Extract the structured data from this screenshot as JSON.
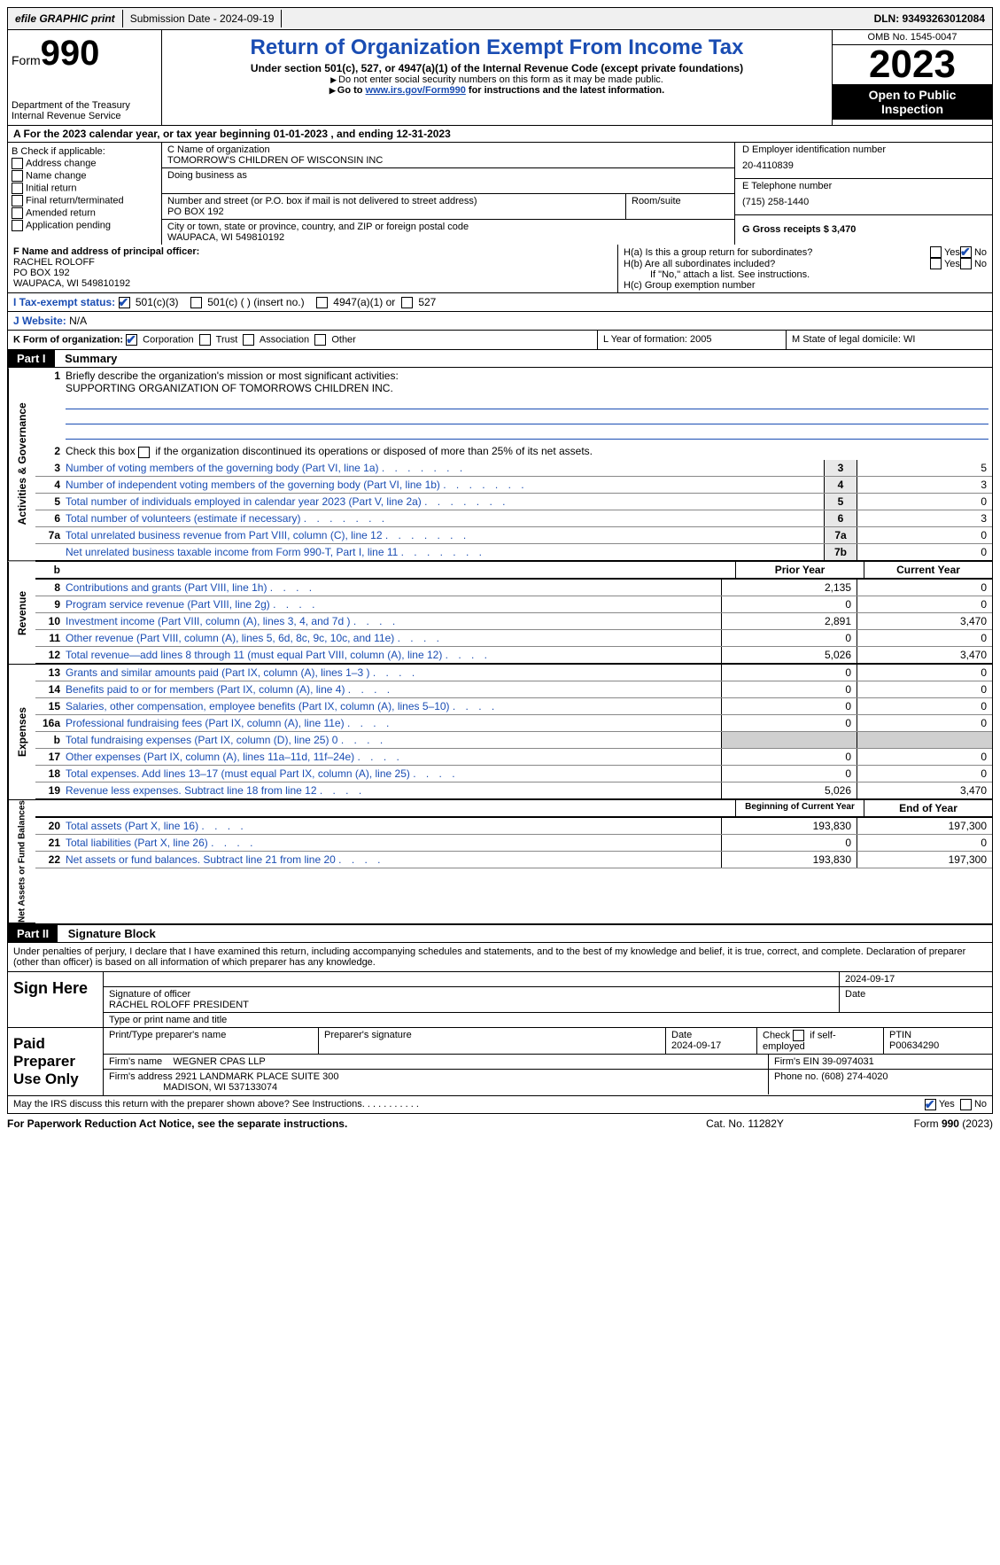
{
  "topbar": {
    "efile": "efile GRAPHIC print",
    "submission_label": "Submission Date - 2024-09-19",
    "dln": "DLN: 93493263012084"
  },
  "header": {
    "form_word": "Form",
    "form_num": "990",
    "dept": "Department of the Treasury",
    "irs": "Internal Revenue Service",
    "title": "Return of Organization Exempt From Income Tax",
    "subtitle": "Under section 501(c), 527, or 4947(a)(1) of the Internal Revenue Code (except private foundations)",
    "note1": "Do not enter social security numbers on this form as it may be made public.",
    "note2": "Go to ",
    "link": "www.irs.gov/Form990",
    "note2b": " for instructions and the latest information.",
    "omb": "OMB No. 1545-0047",
    "year": "2023",
    "open": "Open to Public Inspection"
  },
  "lineA": "A   For the 2023 calendar year, or tax year beginning 01-01-2023    , and ending 12-31-2023",
  "boxB": {
    "head": "B Check if applicable:",
    "opts": [
      "Address change",
      "Name change",
      "Initial return",
      "Final return/terminated",
      "Amended return",
      "Application pending"
    ]
  },
  "boxC": {
    "name_lbl": "C Name of organization",
    "name": "TOMORROW'S CHILDREN OF WISCONSIN INC",
    "dba_lbl": "Doing business as",
    "addr_lbl": "Number and street (or P.O. box if mail is not delivered to street address)",
    "addr": "PO BOX 192",
    "room_lbl": "Room/suite",
    "city_lbl": "City or town, state or province, country, and ZIP or foreign postal code",
    "city": "WAUPACA, WI  549810192"
  },
  "boxD": {
    "lbl": "D Employer identification number",
    "val": "20-4110839"
  },
  "boxE": {
    "lbl": "E Telephone number",
    "val": "(715) 258-1440"
  },
  "boxG": {
    "lbl": "G Gross receipts $ 3,470"
  },
  "boxF": {
    "lbl": "F  Name and address of principal officer:",
    "l1": "RACHEL ROLOFF",
    "l2": "PO BOX 192",
    "l3": "WAUPACA, WI  549810192"
  },
  "boxH": {
    "ha": "H(a)  Is this a group return for subordinates?",
    "hb": "H(b)  Are all subordinates included?",
    "hb2": "If \"No,\" attach a list. See instructions.",
    "hc": "H(c)  Group exemption number",
    "yes": "Yes",
    "no": "No"
  },
  "rowI": {
    "lead": "I   Tax-exempt status:",
    "o1": "501(c)(3)",
    "o2": "501(c) (  ) (insert no.)",
    "o3": "4947(a)(1) or",
    "o4": "527"
  },
  "rowJ": {
    "lead": "J   Website:",
    "val": "  N/A"
  },
  "rowK": {
    "lead": "K Form of organization:",
    "o1": "Corporation",
    "o2": "Trust",
    "o3": "Association",
    "o4": "Other"
  },
  "rowL": "L Year of formation: 2005",
  "rowM": "M State of legal domicile: WI",
  "partI": {
    "num": "Part I",
    "title": "Summary"
  },
  "summary": {
    "l1a": "Briefly describe the organization's mission or most significant activities:",
    "l1b": "SUPPORTING ORGANIZATION OF TOMORROWS CHILDREN INC.",
    "l2": "Check this box        if the organization discontinued its operations or disposed of more than 25% of its net assets.",
    "rows_gov": [
      {
        "n": "3",
        "t": "Number of voting members of the governing body (Part VI, line 1a)",
        "box": "3",
        "v": "5"
      },
      {
        "n": "4",
        "t": "Number of independent voting members of the governing body (Part VI, line 1b)",
        "box": "4",
        "v": "3"
      },
      {
        "n": "5",
        "t": "Total number of individuals employed in calendar year 2023 (Part V, line 2a)",
        "box": "5",
        "v": "0"
      },
      {
        "n": "6",
        "t": "Total number of volunteers (estimate if necessary)",
        "box": "6",
        "v": "3"
      },
      {
        "n": "7a",
        "t": "Total unrelated business revenue from Part VIII, column (C), line 12",
        "box": "7a",
        "v": "0"
      },
      {
        "n": "",
        "t": "Net unrelated business taxable income from Form 990-T, Part I, line 11",
        "box": "7b",
        "v": "0"
      }
    ],
    "col_prior": "Prior Year",
    "col_curr": "Current Year",
    "rows_rev": [
      {
        "n": "8",
        "t": "Contributions and grants (Part VIII, line 1h)",
        "p": "2,135",
        "c": "0"
      },
      {
        "n": "9",
        "t": "Program service revenue (Part VIII, line 2g)",
        "p": "0",
        "c": "0"
      },
      {
        "n": "10",
        "t": "Investment income (Part VIII, column (A), lines 3, 4, and 7d )",
        "p": "2,891",
        "c": "3,470"
      },
      {
        "n": "11",
        "t": "Other revenue (Part VIII, column (A), lines 5, 6d, 8c, 9c, 10c, and 11e)",
        "p": "0",
        "c": "0"
      },
      {
        "n": "12",
        "t": "Total revenue—add lines 8 through 11 (must equal Part VIII, column (A), line 12)",
        "p": "5,026",
        "c": "3,470"
      }
    ],
    "rows_exp": [
      {
        "n": "13",
        "t": "Grants and similar amounts paid (Part IX, column (A), lines 1–3 )",
        "p": "0",
        "c": "0"
      },
      {
        "n": "14",
        "t": "Benefits paid to or for members (Part IX, column (A), line 4)",
        "p": "0",
        "c": "0"
      },
      {
        "n": "15",
        "t": "Salaries, other compensation, employee benefits (Part IX, column (A), lines 5–10)",
        "p": "0",
        "c": "0"
      },
      {
        "n": "16a",
        "t": "Professional fundraising fees (Part IX, column (A), line 11e)",
        "p": "0",
        "c": "0"
      },
      {
        "n": "b",
        "t": "Total fundraising expenses (Part IX, column (D), line 25) 0",
        "p": "shade",
        "c": "shade"
      },
      {
        "n": "17",
        "t": "Other expenses (Part IX, column (A), lines 11a–11d, 11f–24e)",
        "p": "0",
        "c": "0"
      },
      {
        "n": "18",
        "t": "Total expenses. Add lines 13–17 (must equal Part IX, column (A), line 25)",
        "p": "0",
        "c": "0"
      },
      {
        "n": "19",
        "t": "Revenue less expenses. Subtract line 18 from line 12",
        "p": "5,026",
        "c": "3,470"
      }
    ],
    "col_boy": "Beginning of Current Year",
    "col_eoy": "End of Year",
    "rows_net": [
      {
        "n": "20",
        "t": "Total assets (Part X, line 16)",
        "p": "193,830",
        "c": "197,300"
      },
      {
        "n": "21",
        "t": "Total liabilities (Part X, line 26)",
        "p": "0",
        "c": "0"
      },
      {
        "n": "22",
        "t": "Net assets or fund balances. Subtract line 21 from line 20",
        "p": "193,830",
        "c": "197,300"
      }
    ],
    "side_gov": "Activities & Governance",
    "side_rev": "Revenue",
    "side_exp": "Expenses",
    "side_net": "Net Assets or Fund Balances"
  },
  "partII": {
    "num": "Part II",
    "title": "Signature Block"
  },
  "sig": {
    "decl": "Under penalties of perjury, I declare that I have examined this return, including accompanying schedules and statements, and to the best of my knowledge and belief, it is true, correct, and complete. Declaration of preparer (other than officer) is based on all information of which preparer has any knowledge.",
    "sign_here": "Sign Here",
    "sig_officer": "Signature of officer",
    "officer": "RACHEL ROLOFF PRESIDENT",
    "type_name": "Type or print name and title",
    "date_lbl": "Date",
    "date1": "2024-09-17",
    "paid": "Paid Preparer Use Only",
    "prep_name_lbl": "Print/Type preparer's name",
    "prep_sig_lbl": "Preparer's signature",
    "prep_date": "2024-09-17",
    "self_emp": "Check         if self-employed",
    "ptin_lbl": "PTIN",
    "ptin": "P00634290",
    "firm_name_lbl": "Firm's name",
    "firm_name": "WEGNER CPAS LLP",
    "firm_ein_lbl": "Firm's EIN",
    "firm_ein": "39-0974031",
    "firm_addr_lbl": "Firm's address",
    "firm_addr1": "2921 LANDMARK PLACE SUITE 300",
    "firm_addr2": "MADISON, WI  537133074",
    "phone_lbl": "Phone no.",
    "phone": "(608) 274-4020",
    "discuss": "May the IRS discuss this return with the preparer shown above? See Instructions."
  },
  "footer": {
    "l": "For Paperwork Reduction Act Notice, see the separate instructions.",
    "m": "Cat. No. 11282Y",
    "r": "Form 990 (2023)"
  },
  "colors": {
    "blue": "#1a4db3",
    "black": "#000000"
  }
}
